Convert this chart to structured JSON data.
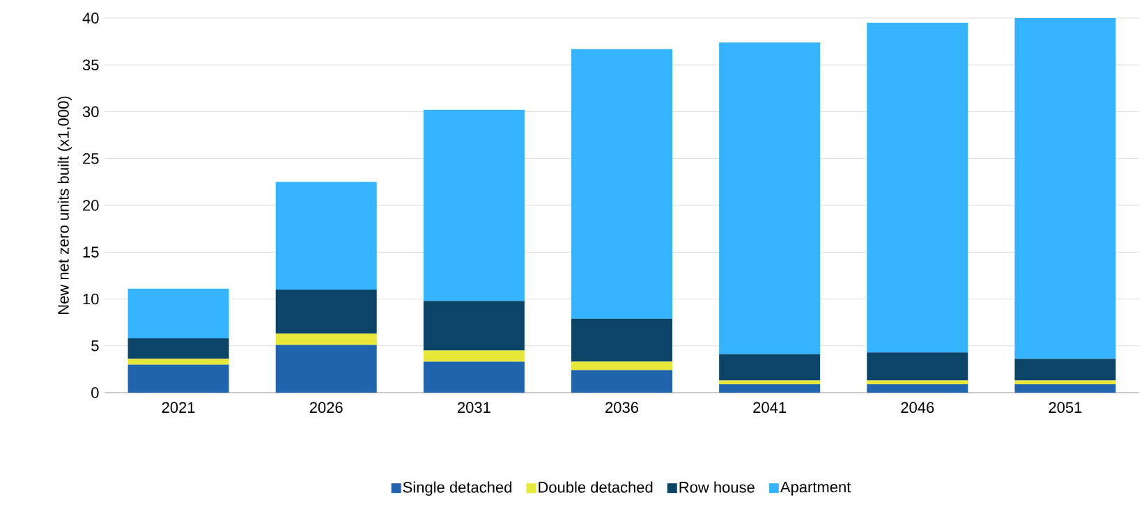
{
  "chart_data": {
    "type": "bar",
    "stacked": true,
    "ylabel": "New net zero units built (x1,000)",
    "categories": [
      "2021",
      "2026",
      "2031",
      "2036",
      "2041",
      "2046",
      "2051"
    ],
    "series": [
      {
        "name": "Single detached",
        "color": "#1f64ad",
        "values": [
          3.0,
          5.1,
          3.3,
          2.4,
          0.9,
          0.9,
          0.9
        ]
      },
      {
        "name": "Double detached",
        "color": "#e8e83a",
        "values": [
          0.6,
          1.2,
          1.2,
          0.9,
          0.4,
          0.4,
          0.4
        ]
      },
      {
        "name": "Row house",
        "color": "#0b4466",
        "values": [
          2.2,
          4.7,
          5.3,
          4.6,
          2.8,
          3.0,
          2.3
        ]
      },
      {
        "name": "Apartment",
        "color": "#36b3ff",
        "values": [
          5.3,
          11.5,
          20.4,
          28.8,
          33.3,
          35.2,
          36.4
        ]
      }
    ],
    "ylim": [
      0,
      40
    ],
    "yticks": [
      0,
      5,
      10,
      15,
      20,
      25,
      30,
      35,
      40
    ],
    "grid": "y",
    "legend": "bottom"
  }
}
